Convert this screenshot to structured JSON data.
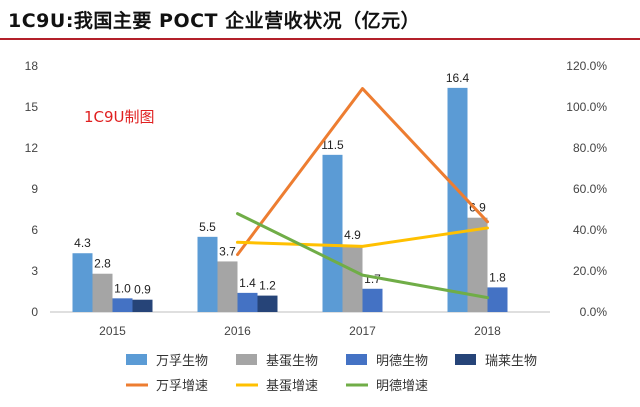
{
  "title": "1C9U:我国主要 POCT 企业营收状况（亿元）",
  "watermark": "1C9U制图",
  "chart_data": {
    "type": "bar",
    "categories": [
      "2015",
      "2016",
      "2017",
      "2018"
    ],
    "y_left": {
      "ticks": [
        "0",
        "3",
        "6",
        "9",
        "12",
        "15",
        "18"
      ],
      "lim": [
        0,
        18
      ]
    },
    "y_right": {
      "ticks": [
        "0.0%",
        "20.0%",
        "40.0%",
        "60.0%",
        "80.0%",
        "100.0%",
        "120.0%"
      ],
      "lim": [
        0,
        120
      ]
    },
    "bars": [
      {
        "name": "万孚生物",
        "color": "#5b9bd5",
        "values": [
          4.3,
          5.5,
          11.5,
          16.4
        ]
      },
      {
        "name": "基蛋生物",
        "color": "#a5a5a5",
        "values": [
          2.8,
          3.7,
          4.9,
          6.9
        ]
      },
      {
        "name": "明德生物",
        "color": "#4472c4",
        "values": [
          1.0,
          1.4,
          1.7,
          1.8
        ]
      },
      {
        "name": "瑞莱生物",
        "color": "#264478",
        "values": [
          0.9,
          1.2,
          null,
          null
        ]
      }
    ],
    "bar_labels": [
      [
        "4.3",
        "5.5",
        "11.5",
        "16.4"
      ],
      [
        "2.8",
        "3.7",
        "4.9",
        "6.9"
      ],
      [
        "1.0",
        "1.4",
        "1.7",
        "1.8"
      ],
      [
        "0.9",
        "1.2",
        "",
        ""
      ]
    ],
    "lines": [
      {
        "name": "万孚增速",
        "color": "#ed7d31",
        "values": [
          null,
          28,
          109,
          44
        ]
      },
      {
        "name": "基蛋增速",
        "color": "#ffc000",
        "values": [
          null,
          34,
          32,
          41
        ]
      },
      {
        "name": "明德增速",
        "color": "#70ad47",
        "values": [
          null,
          48,
          18,
          7
        ]
      }
    ]
  }
}
